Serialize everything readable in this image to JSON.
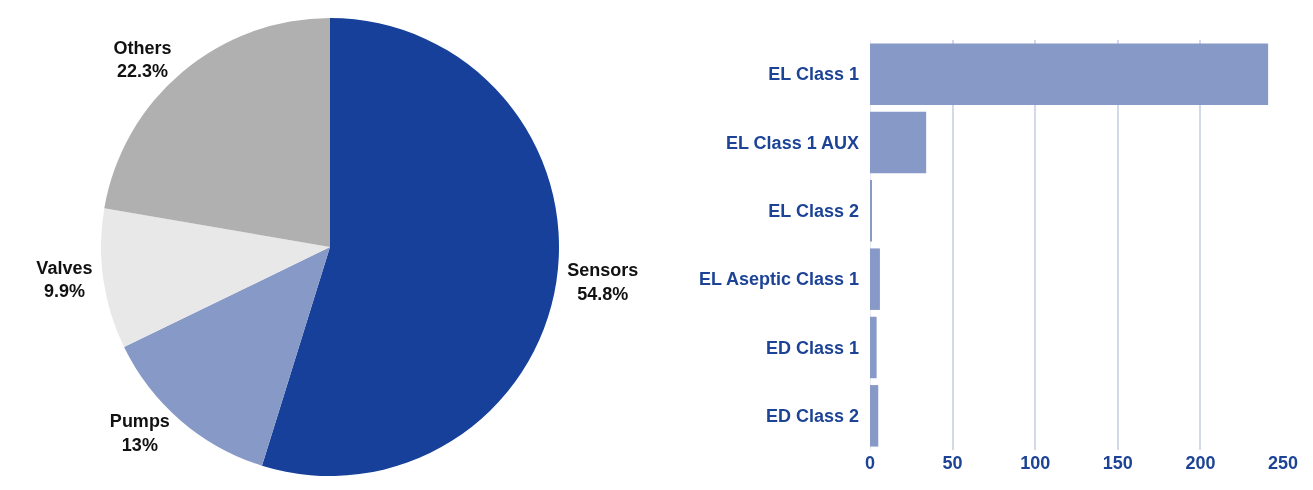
{
  "chart_data": [
    {
      "type": "pie",
      "categories": [
        "Sensors",
        "Pumps",
        "Valves",
        "Others"
      ],
      "values": [
        54.8,
        13,
        9.9,
        22.3
      ],
      "value_labels": [
        "54.8%",
        "13%",
        "9.9%",
        "22.3%"
      ],
      "colors": [
        "#17409a",
        "#8799c6",
        "#e8e8e8",
        "#b0b0b0"
      ],
      "legend": false
    },
    {
      "type": "bar",
      "orientation": "horizontal",
      "categories": [
        "EL Class 1",
        "EL Class 1 AUX",
        "EL Class 2",
        "EL Aseptic Class 1",
        "ED Class 1",
        "ED Class 2"
      ],
      "values": [
        241,
        34,
        1,
        6,
        4,
        5
      ],
      "color": "#8799c6",
      "xlim": [
        0,
        250
      ],
      "xticks": [
        0,
        50,
        100,
        150,
        200,
        250
      ],
      "grid": "x",
      "legend": false
    }
  ]
}
